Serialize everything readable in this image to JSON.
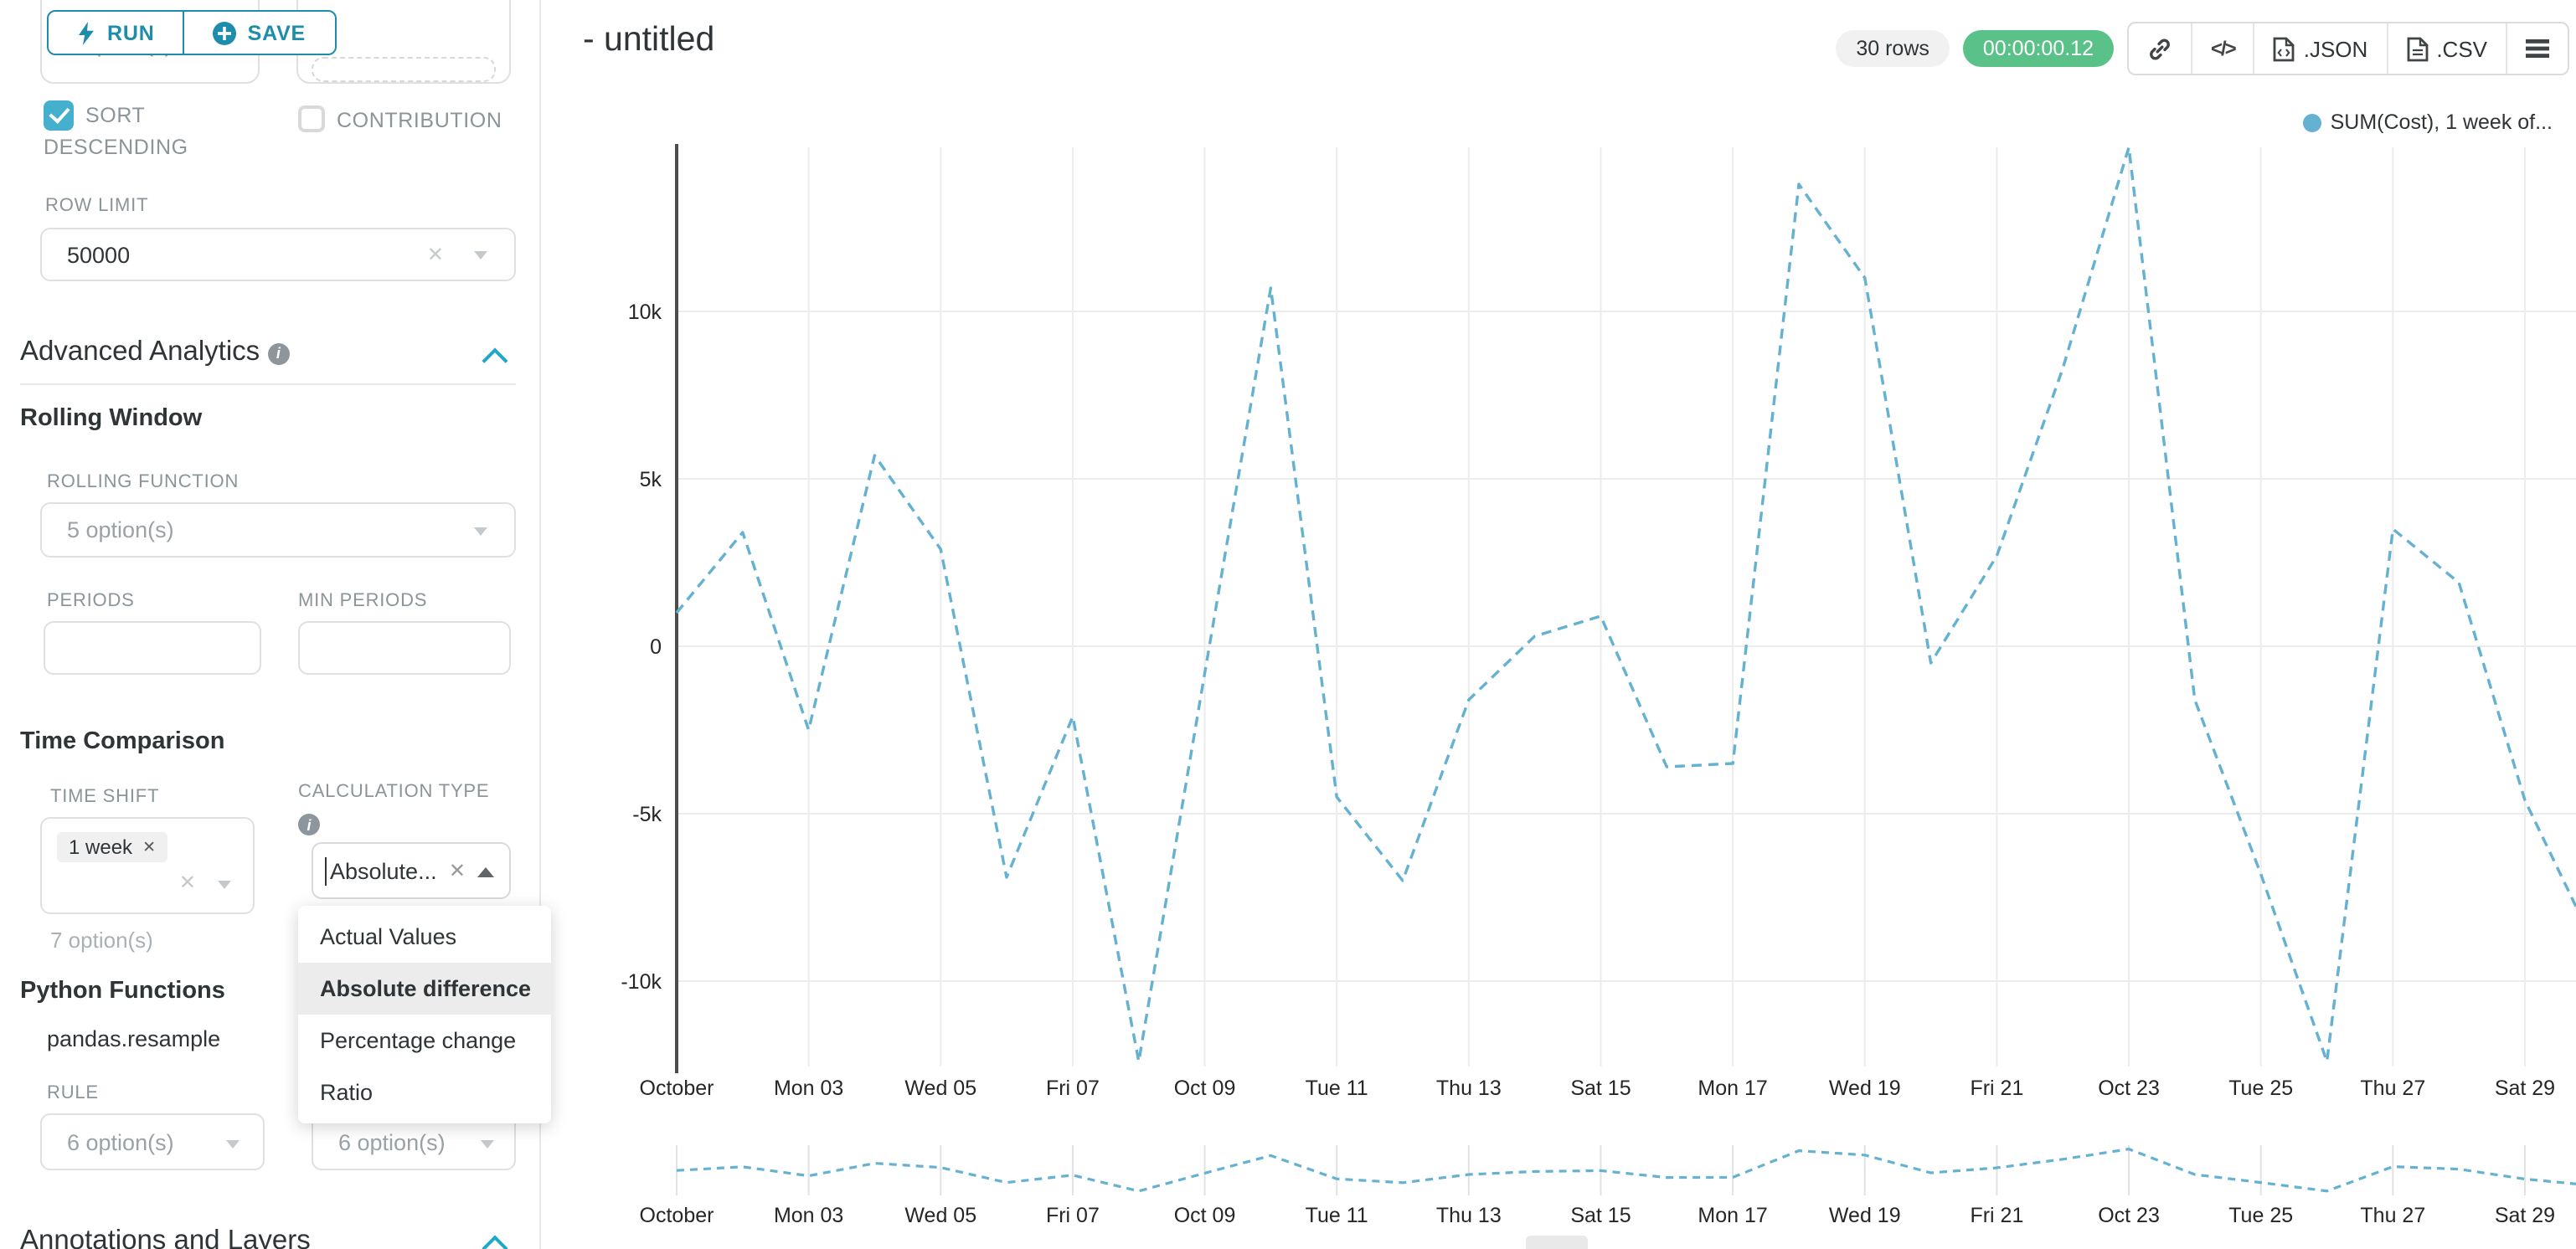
{
  "colors": {
    "primary": "#1e8cab",
    "accent": "#1fa8c9",
    "checkbox": "#45b0ce",
    "success": "#5ac189",
    "line": "#64b1d1"
  },
  "sidebar": {
    "top_select_value": "7 option(s)",
    "buttons": {
      "run": "RUN",
      "save": "SAVE"
    },
    "checkboxes": {
      "sort_descending": "SORT DESCENDING",
      "contribution": "CONTRIBUTION"
    },
    "row_limit": {
      "label": "ROW LIMIT",
      "value": "50000"
    },
    "advanced_analytics_title": "Advanced Analytics",
    "rolling_window": {
      "title": "Rolling Window",
      "function_label": "ROLLING FUNCTION",
      "function_value": "5 option(s)",
      "periods_label": "PERIODS",
      "min_periods_label": "MIN PERIODS"
    },
    "time_comparison": {
      "title": "Time Comparison",
      "time_shift_label": "TIME SHIFT",
      "time_shift_tag": "1 week",
      "time_shift_hint": "7 option(s)",
      "calculation_type_label": "CALCULATION TYPE",
      "calculation_type_value": "Absolute...",
      "dropdown_options": [
        "Actual Values",
        "Absolute difference",
        "Percentage change",
        "Ratio"
      ],
      "dropdown_selected": "Absolute difference"
    },
    "python_functions": {
      "title": "Python Functions",
      "item": "pandas.resample",
      "rule_label": "RULE",
      "rule_values": [
        "6 option(s)",
        "6 option(s)"
      ]
    },
    "annotations_title": "Annotations and Layers"
  },
  "header": {
    "title": "- untitled",
    "rows_badge": "30 rows",
    "duration_badge": "00:00:00.12",
    "json_label": ".JSON",
    "csv_label": ".CSV"
  },
  "chart_data": {
    "type": "line",
    "legend": "SUM(Cost), 1 week of...",
    "series_name": "SUM(Cost), 1 week offset",
    "line_style": "dashed",
    "color": "#64b1d1",
    "grid": true,
    "legend_position": "top-right",
    "has_preview_strip": true,
    "x": [
      "Oct 01",
      "Oct 02",
      "Oct 03",
      "Oct 04",
      "Oct 05",
      "Oct 06",
      "Oct 07",
      "Oct 08",
      "Oct 09",
      "Oct 10",
      "Oct 11",
      "Oct 12",
      "Oct 13",
      "Oct 14",
      "Oct 15",
      "Oct 16",
      "Oct 17",
      "Oct 18",
      "Oct 19",
      "Oct 20",
      "Oct 21",
      "Oct 22",
      "Oct 23",
      "Oct 24",
      "Oct 25",
      "Oct 26",
      "Oct 27",
      "Oct 28",
      "Oct 29",
      "Oct 30"
    ],
    "values": [
      1000,
      3400,
      -2500,
      5700,
      2900,
      -6900,
      -2100,
      -12400,
      -800,
      10700,
      -4500,
      -7000,
      -1600,
      300,
      900,
      -3600,
      -3500,
      13800,
      11000,
      -500,
      2700,
      8300,
      14900,
      -1600,
      -6800,
      -12400,
      3500,
      1900,
      -4600,
      -8700
    ],
    "x_ticks": [
      {
        "day": 1,
        "label": "October"
      },
      {
        "day": 3,
        "label": "Mon 03"
      },
      {
        "day": 5,
        "label": "Wed 05"
      },
      {
        "day": 7,
        "label": "Fri 07"
      },
      {
        "day": 9,
        "label": "Oct 09"
      },
      {
        "day": 11,
        "label": "Tue 11"
      },
      {
        "day": 13,
        "label": "Thu 13"
      },
      {
        "day": 15,
        "label": "Sat 15"
      },
      {
        "day": 17,
        "label": "Mon 17"
      },
      {
        "day": 19,
        "label": "Wed 19"
      },
      {
        "day": 21,
        "label": "Fri 21"
      },
      {
        "day": 23,
        "label": "Oct 23"
      },
      {
        "day": 25,
        "label": "Tue 25"
      },
      {
        "day": 27,
        "label": "Thu 27"
      },
      {
        "day": 29,
        "label": "Sat 29"
      }
    ],
    "y_ticks": [
      {
        "value": 10000,
        "label": "10k"
      },
      {
        "value": 5000,
        "label": "5k"
      },
      {
        "value": 0,
        "label": "0"
      },
      {
        "value": -5000,
        "label": "-5k"
      },
      {
        "value": -10000,
        "label": "-10k"
      }
    ],
    "ylim": [
      -13500,
      15500
    ]
  }
}
